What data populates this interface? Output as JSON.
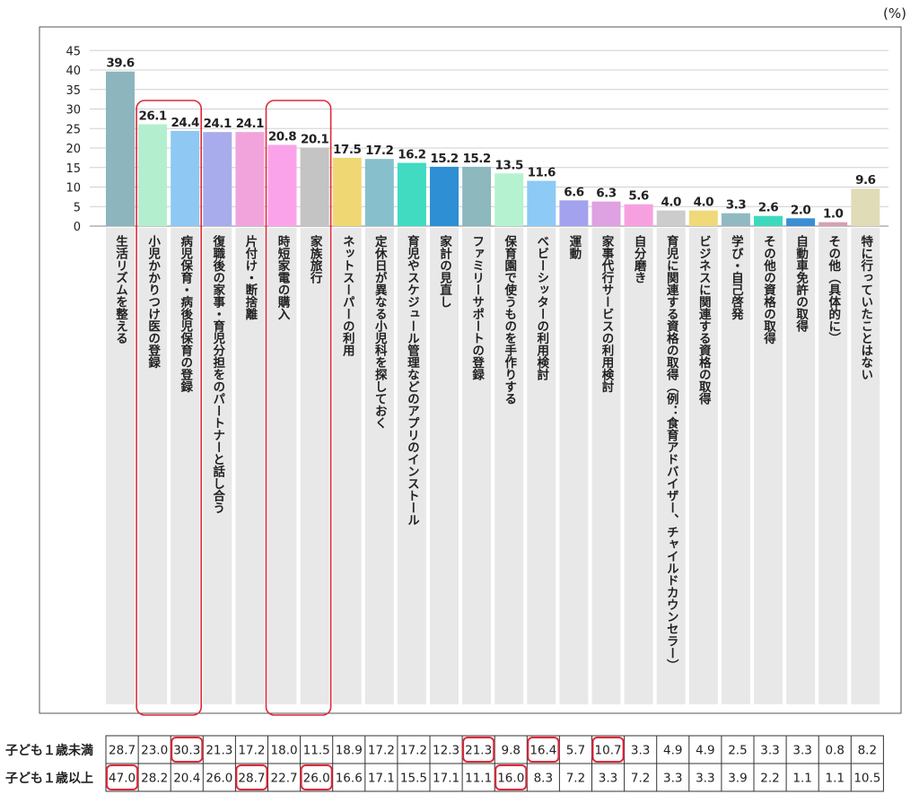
{
  "chart_data": {
    "type": "bar",
    "unit_label": "(%)",
    "ylim": [
      0,
      45
    ],
    "yticks": [
      0,
      5,
      10,
      15,
      20,
      25,
      30,
      35,
      40,
      45
    ],
    "grid": true,
    "categories": [
      "生活リズムを整える",
      "小児かかりつけ医の登録",
      "病児保育・病後児保育の登録",
      "復職後の家事・育児分担をのパートナーと話し合う",
      "片付け・断捨離",
      "時短家電の購入",
      "家族旅行",
      "ネットスーパーの利用",
      "定休日が異なる小児科を探しておく",
      "育児やスケジュール管理などのアプリのインストール",
      "家計の見直し",
      "ファミリーサポートの登録",
      "保育園で使うものを手作りする",
      "ベビーシッターの利用検討",
      "運動",
      "家事代行サービスの利用検討",
      "自分磨き",
      "育児に関連する資格の取得（例：食育アドバイザー、チャイルドカウンセラー）",
      "ビジネスに関連する資格の取得",
      "学び・自己啓発",
      "その他の資格の取得",
      "自動車免許の取得",
      "その他（具体的に）",
      "特に行っていたことはない"
    ],
    "values": [
      39.6,
      26.1,
      24.4,
      24.1,
      24.1,
      20.8,
      20.1,
      17.5,
      17.2,
      16.2,
      15.2,
      15.2,
      13.5,
      11.6,
      6.6,
      6.3,
      5.6,
      4.0,
      4.0,
      3.3,
      2.6,
      2.0,
      1.0,
      9.6
    ],
    "value_labels": [
      "39.6",
      "26.1",
      "24.4",
      "24.1",
      "24.1",
      "20.8",
      "20.1",
      "17.5",
      "17.2",
      "16.2",
      "15.2",
      "15.2",
      "13.5",
      "11.6",
      "6.6",
      "6.3",
      "5.6",
      "4.0",
      "4.0",
      "3.3",
      "2.6",
      "2.0",
      "1.0",
      "9.6"
    ],
    "colors": [
      "#8db5bd",
      "#b3efcf",
      "#8fc8f2",
      "#a9acec",
      "#f1a4dc",
      "#fba3ea",
      "#c4c4c4",
      "#efd774",
      "#87bfcd",
      "#40dbc1",
      "#2e8fd5",
      "#8db8bd",
      "#b5f2cf",
      "#8dcaf5",
      "#a3a2ee",
      "#dea1e2",
      "#f7a0e0",
      "#cccccc",
      "#f0d979",
      "#90b9c2",
      "#3ed9bd",
      "#3a8ed4",
      "#d6a0b2",
      "#e0dcb8"
    ],
    "highlight_groups": [
      [
        1,
        2
      ],
      [
        5,
        6
      ]
    ],
    "table": {
      "rows": [
        {
          "label": "子ども１歳未満",
          "values": [
            "28.7",
            "23.0",
            "30.3",
            "21.3",
            "17.2",
            "18.0",
            "11.5",
            "18.9",
            "17.2",
            "17.2",
            "12.3",
            "21.3",
            "9.8",
            "16.4",
            "5.7",
            "10.7",
            "3.3",
            "4.9",
            "4.9",
            "2.5",
            "3.3",
            "3.3",
            "0.8",
            "8.2"
          ],
          "highlighted": [
            2,
            11,
            13,
            15
          ]
        },
        {
          "label": "子ども１歳以上",
          "values": [
            "47.0",
            "28.2",
            "20.4",
            "26.0",
            "28.7",
            "22.7",
            "26.0",
            "16.6",
            "17.1",
            "15.5",
            "17.1",
            "11.1",
            "16.0",
            "8.3",
            "7.2",
            "3.3",
            "7.2",
            "3.3",
            "3.3",
            "3.9",
            "2.2",
            "1.1",
            "1.1",
            "10.5"
          ],
          "highlighted": [
            0,
            4,
            6,
            12
          ]
        }
      ]
    }
  }
}
